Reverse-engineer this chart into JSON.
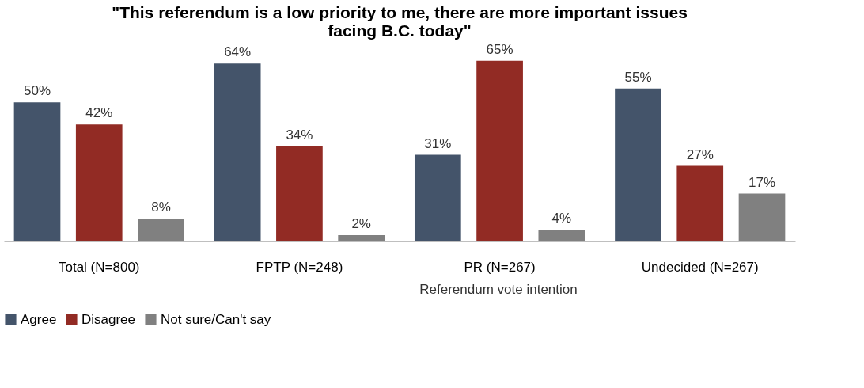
{
  "chart_data": {
    "type": "bar",
    "title": "\"This referendum is a low priority to me, there are more important issues facing B.C. today\"",
    "categories": [
      "Total (N=800)",
      "FPTP (N=248)",
      "PR (N=267)",
      "Undecided (N=267)"
    ],
    "series": [
      {
        "name": "Agree",
        "color": "#44546a",
        "values": [
          50,
          64,
          31,
          55
        ],
        "value_labels": [
          "50%",
          "64%",
          "31%",
          "55%"
        ]
      },
      {
        "name": "Disagree",
        "color": "#922b24",
        "values": [
          42,
          34,
          65,
          27
        ],
        "value_labels": [
          "42%",
          "34%",
          "65%",
          "27%"
        ]
      },
      {
        "name": "Not sure/Can't say",
        "color": "#808080",
        "values": [
          8,
          2,
          4,
          17
        ],
        "value_labels": [
          "8%",
          "2%",
          "4%",
          "17%"
        ]
      }
    ],
    "annotations": [
      "Referendum vote intention"
    ],
    "legend": "bottom",
    "grid": false
  }
}
